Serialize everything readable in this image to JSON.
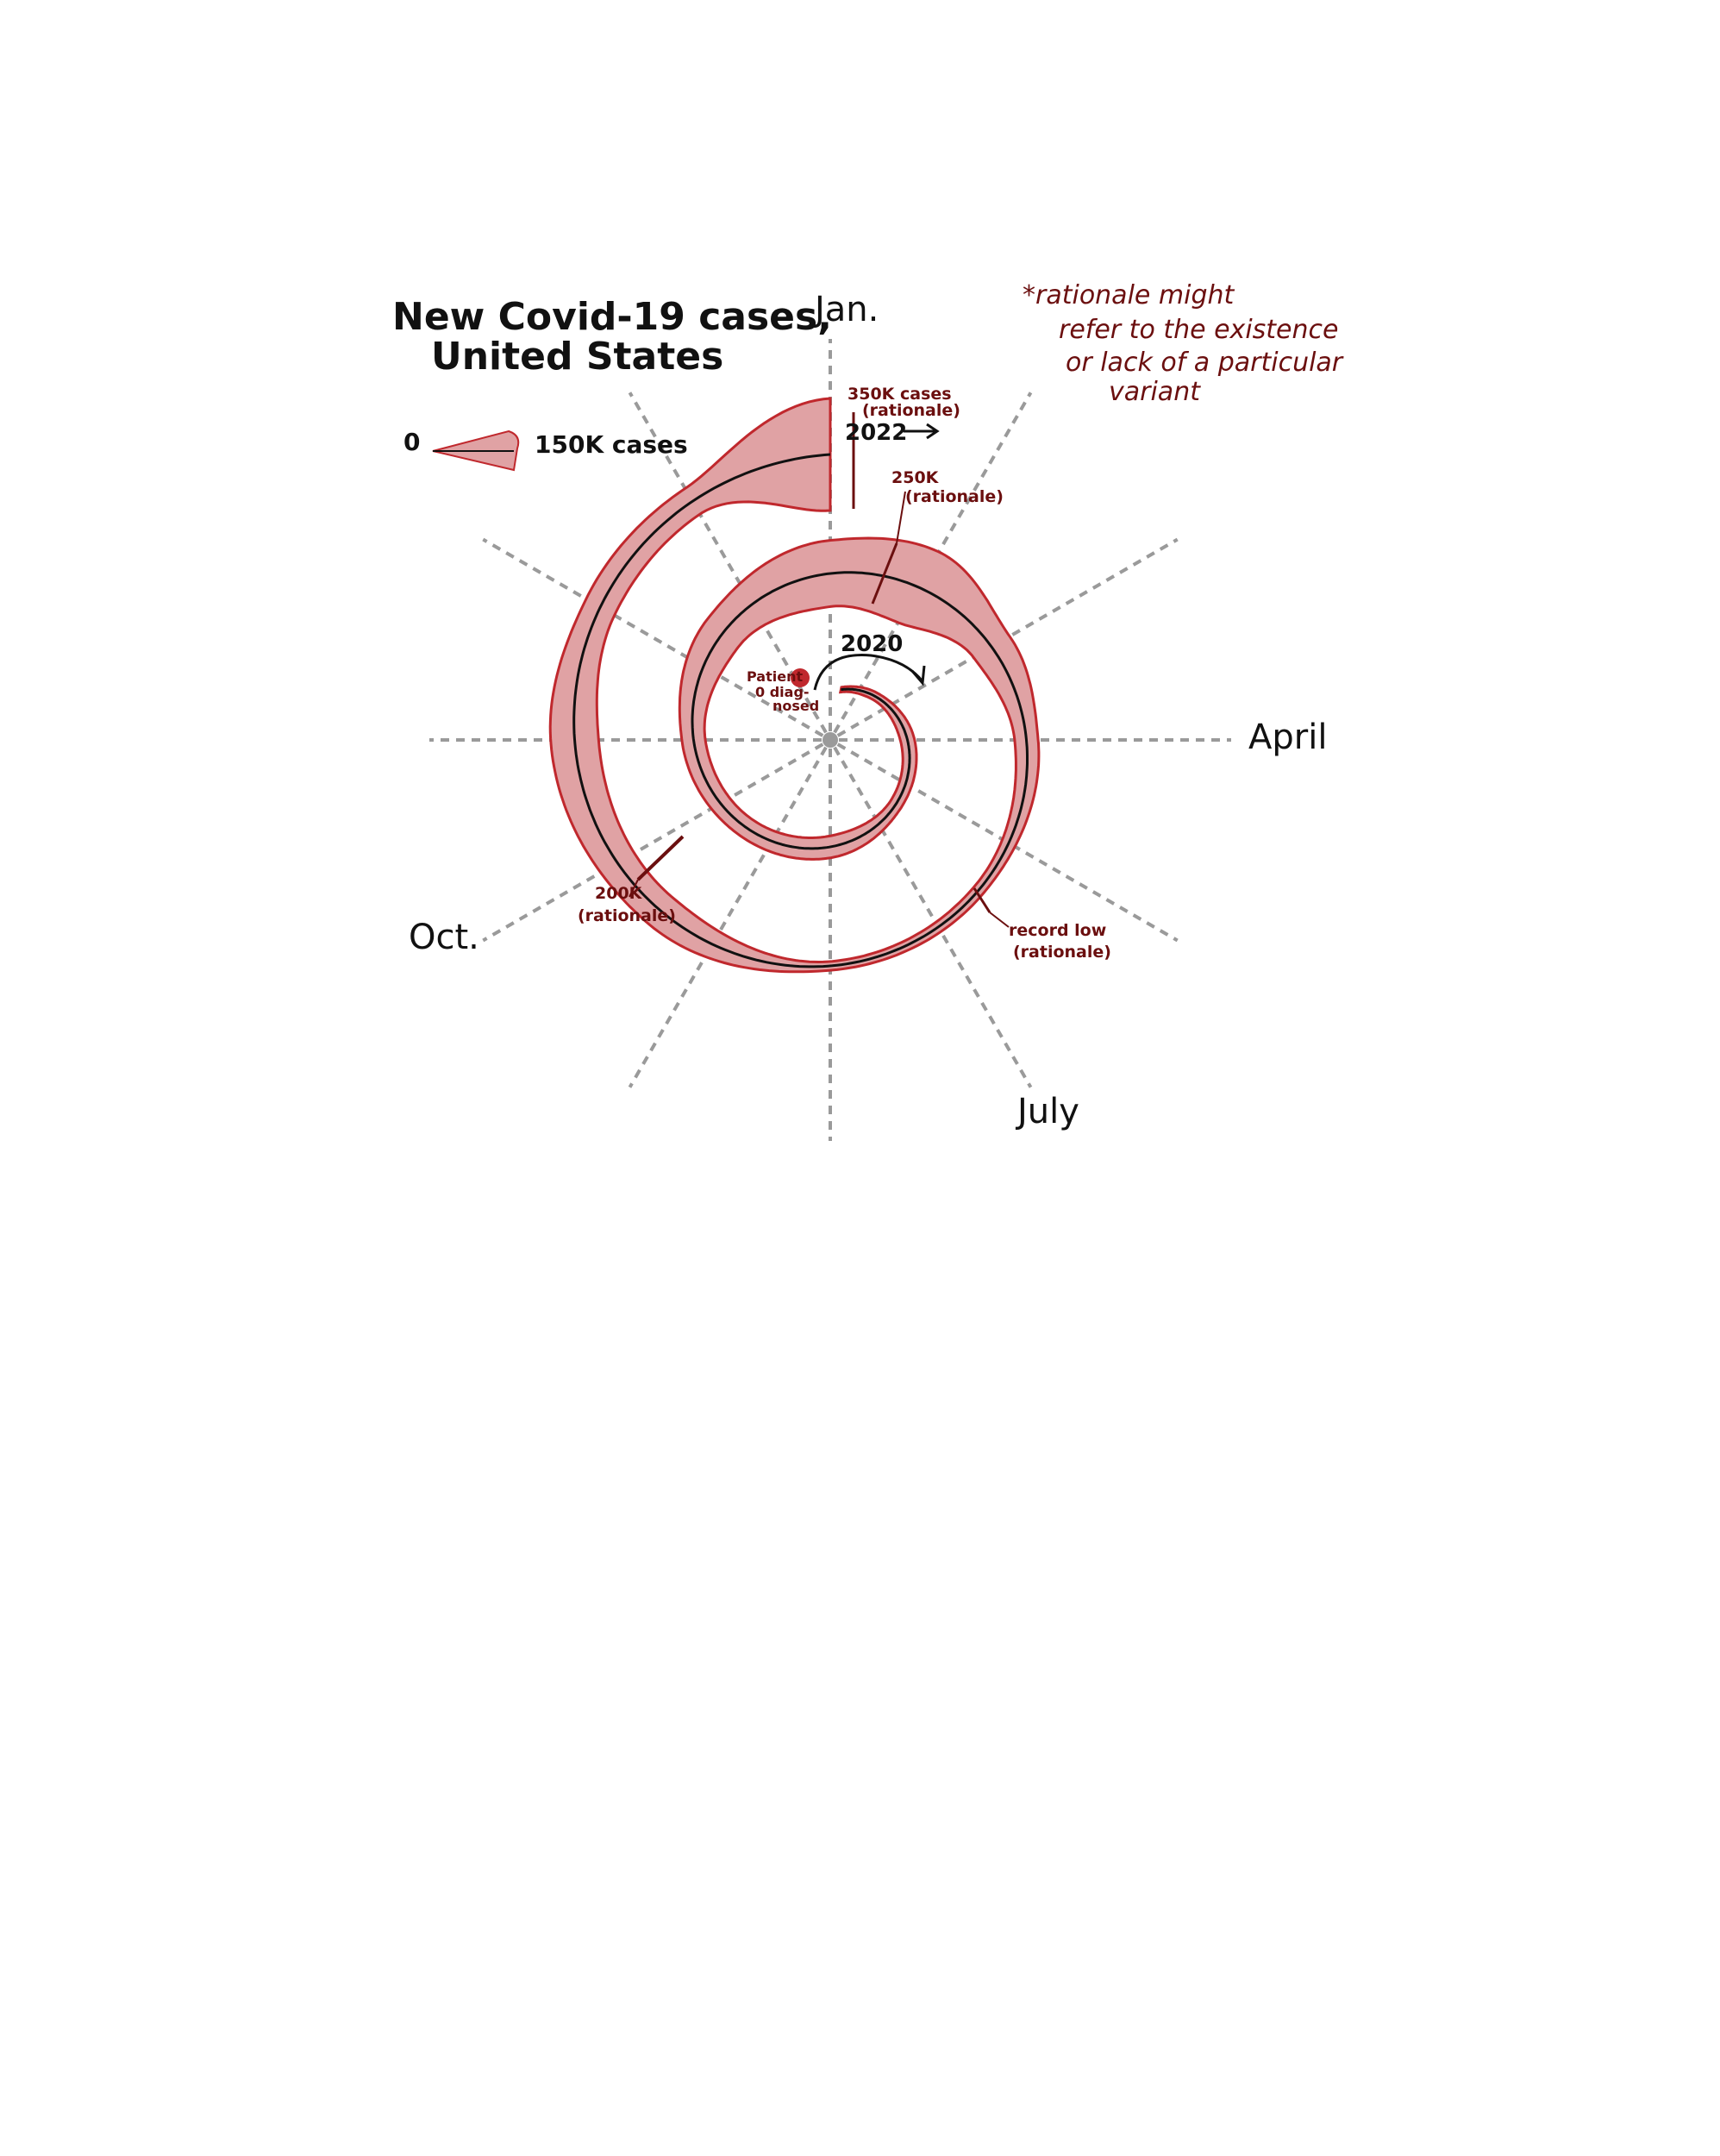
{
  "chart_data": {
    "type": "spiral",
    "title_line1": "New Covid-19 cases,",
    "title_line2": "United States",
    "legend": {
      "zero_label": "0",
      "max_label": "150K cases"
    },
    "axis_labels": {
      "jan": "Jan.",
      "april": "April",
      "july": "July",
      "oct": "Oct."
    },
    "year_labels": {
      "start": "2020",
      "end": "2022"
    },
    "annotations": {
      "origin_line1": "Patient",
      "origin_line2": "0 diag-",
      "origin_line3": "nosed",
      "peak_line1": "350K cases",
      "peak_line2": "(rationale)",
      "k250_line1": "250K",
      "k250_line2": "(rationale)",
      "k200_line1": "200K",
      "k200_line2": "(rationale)",
      "low_line1": "record low",
      "low_line2": "(rationale)"
    },
    "note_lines": [
      "*rationale might",
      "refer to the existence",
      "or lack of a particular",
      "variant"
    ],
    "color_band": "#e0a2a4",
    "color_band_edge": "#c0282d",
    "color_line": "#111111",
    "color_axis": "#9a9a9a",
    "color_annotation": "#6b0f0f",
    "spiral_points": [
      {
        "months": 0.4,
        "cases": 0
      },
      {
        "months": 1.5,
        "cases": 10
      },
      {
        "months": 3,
        "cases": 30
      },
      {
        "months": 4.5,
        "cases": 25
      },
      {
        "months": 6,
        "cases": 55
      },
      {
        "months": 7.5,
        "cases": 50
      },
      {
        "months": 9,
        "cases": 60
      },
      {
        "months": 10.5,
        "cases": 120
      },
      {
        "months": 12,
        "cases": 200
      },
      {
        "months": 13,
        "cases": 250
      },
      {
        "months": 14,
        "cases": 120
      },
      {
        "months": 15,
        "cases": 60
      },
      {
        "months": 16.5,
        "cases": 20
      },
      {
        "months": 18,
        "cases": 12
      },
      {
        "months": 19.5,
        "cases": 100
      },
      {
        "months": 21,
        "cases": 140
      },
      {
        "months": 22,
        "cases": 90
      },
      {
        "months": 23,
        "cases": 80
      },
      {
        "months": 24,
        "cases": 350
      }
    ]
  }
}
